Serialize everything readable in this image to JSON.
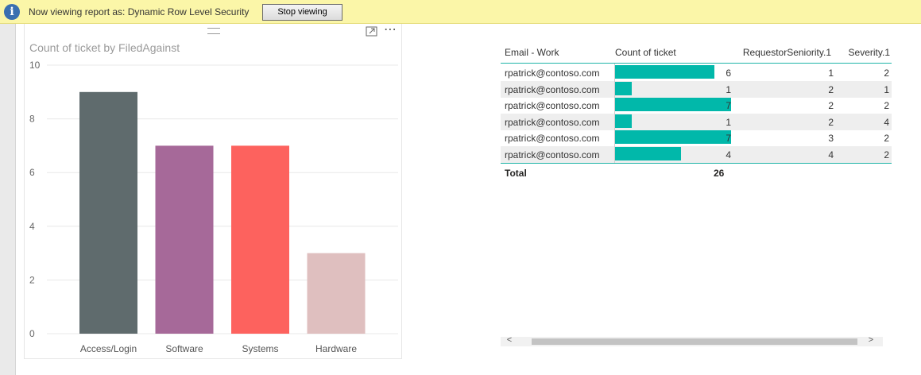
{
  "banner": {
    "info_icon": "info-icon",
    "text": "Now viewing report as: Dynamic Row Level Security",
    "stop_button": "Stop viewing"
  },
  "chart": {
    "title": "Count of ticket by FiledAgainst",
    "header_icons": [
      "drag-handle-icon",
      "focus-mode-icon",
      "more-options-icon"
    ],
    "more_glyph": "⋯"
  },
  "chart_data": {
    "type": "bar",
    "title": "Count of ticket by FiledAgainst",
    "xlabel": "",
    "ylabel": "",
    "categories": [
      "Access/Login",
      "Software",
      "Systems",
      "Hardware"
    ],
    "values": [
      9,
      7,
      7,
      3
    ],
    "colors": [
      "#5f6b6d",
      "#a66999",
      "#fd625e",
      "#dfbfbf"
    ],
    "yticks": [
      "0",
      "2",
      "4",
      "6",
      "8",
      "10"
    ],
    "ylim": [
      0,
      10
    ],
    "grid": true,
    "legend": "none"
  },
  "table": {
    "columns": [
      "Email - Work",
      "Count of ticket",
      "RequestorSeniority.1",
      "Severity.1"
    ],
    "rows": [
      {
        "email": "rpatrick@contoso.com",
        "count": "6",
        "seniority": "1",
        "severity": "2"
      },
      {
        "email": "rpatrick@contoso.com",
        "count": "1",
        "seniority": "2",
        "severity": "1"
      },
      {
        "email": "rpatrick@contoso.com",
        "count": "7",
        "seniority": "2",
        "severity": "2"
      },
      {
        "email": "rpatrick@contoso.com",
        "count": "1",
        "seniority": "2",
        "severity": "4"
      },
      {
        "email": "rpatrick@contoso.com",
        "count": "7",
        "seniority": "3",
        "severity": "2"
      },
      {
        "email": "rpatrick@contoso.com",
        "count": "4",
        "seniority": "4",
        "severity": "2"
      }
    ],
    "bar_max": 7,
    "bar_color": "#01b8aa",
    "total_label": "Total",
    "total_count": "26"
  },
  "scrollbar": {
    "left_arrow": "<",
    "right_arrow": ">"
  }
}
